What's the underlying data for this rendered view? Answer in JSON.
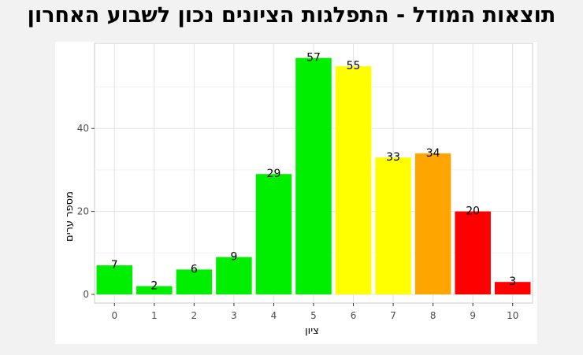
{
  "header": {
    "title": "תוצאות המודל - התפלגות הציונים נכון לשבוע האחרון"
  },
  "chart_data": {
    "type": "bar",
    "title": "",
    "xlabel": "ציון",
    "ylabel": "מספר ערים",
    "categories": [
      "0",
      "1",
      "2",
      "3",
      "4",
      "5",
      "6",
      "7",
      "8",
      "9",
      "10"
    ],
    "values": [
      7,
      2,
      6,
      9,
      29,
      57,
      55,
      33,
      34,
      20,
      3
    ],
    "colors": [
      "#00ee00",
      "#00ee00",
      "#00ee00",
      "#00ee00",
      "#00ee00",
      "#00ee00",
      "#ffff00",
      "#ffff00",
      "#ffa500",
      "#ff0000",
      "#ff0000"
    ],
    "yticks": [
      "0",
      "20",
      "40"
    ],
    "ylim": [
      0,
      57
    ],
    "grid": true,
    "legend": "none"
  }
}
